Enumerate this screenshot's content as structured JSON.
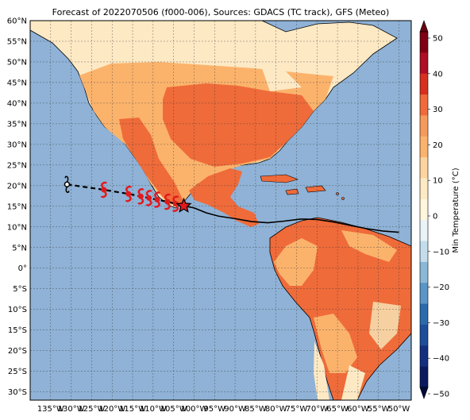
{
  "title": "Forecast of 2022070506 (f000-006), Sources: GDACS (TC track), GFS (Meteo)",
  "map": {
    "lon_range": [
      -140,
      -47
    ],
    "lat_range": [
      -32,
      60
    ],
    "lat_labels": [
      "60°N",
      "55°N",
      "50°N",
      "45°N",
      "40°N",
      "35°N",
      "30°N",
      "25°N",
      "20°N",
      "15°N",
      "10°N",
      "5°N",
      "0°",
      "5°S",
      "10°S",
      "15°S",
      "20°S",
      "25°S",
      "30°S"
    ],
    "lon_labels": [
      "135°W",
      "130°W",
      "125°W",
      "120°W",
      "115°W",
      "110°W",
      "105°W",
      "100°W",
      "95°W",
      "90°W",
      "85°W",
      "80°W",
      "75°W",
      "70°W",
      "65°W",
      "60°W",
      "55°W",
      "50°W"
    ],
    "ocean_color": "#8fb2d6",
    "gridlines": true
  },
  "colorbar": {
    "label": "Min Temperature (°C)",
    "ticks": [
      "50",
      "40",
      "30",
      "20",
      "10",
      "0",
      "−10",
      "−20",
      "−30",
      "−40",
      "−50"
    ],
    "colors": [
      "#fde9c4",
      "#fbb36c",
      "#ef6b3a",
      "#f6d0a0",
      "#fff6dc",
      "#e9f3f8",
      "#c4ddec",
      "#8cb8d8",
      "#4a86c0",
      "#1d3f8c",
      "#0a1a5e",
      "#7a0a1e",
      "#a50f24",
      "#d7301f"
    ]
  },
  "track": {
    "past_points_lonlat": [
      [
        -131,
        20.3
      ],
      [
        -122,
        19
      ],
      [
        -116,
        18
      ],
      [
        -113,
        17.4
      ],
      [
        -111,
        17
      ],
      [
        -109,
        16.6
      ],
      [
        -106.5,
        16.1
      ],
      [
        -104.5,
        15.6
      ],
      [
        -102.5,
        15.1
      ]
    ],
    "current_position": [
      -102.5,
      15.1
    ],
    "forecast_line_lonlat": [
      [
        -102.5,
        15.1
      ],
      [
        -100,
        14.6
      ],
      [
        -97,
        13.4
      ],
      [
        -94,
        12.6
      ],
      [
        -90,
        12.0
      ],
      [
        -86,
        11.3
      ],
      [
        -82,
        11.0
      ],
      [
        -78,
        11.4
      ],
      [
        -74,
        11.9
      ],
      [
        -70,
        11.8
      ],
      [
        -66,
        11.2
      ],
      [
        -62,
        10.4
      ],
      [
        -58,
        9.6
      ],
      [
        -54,
        9.0
      ],
      [
        -50,
        8.7
      ]
    ],
    "symbol_color": "#e31a1c"
  }
}
